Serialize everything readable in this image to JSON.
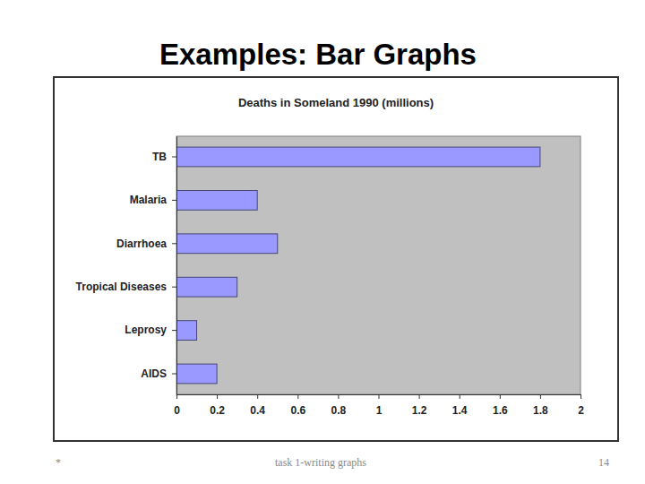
{
  "slide": {
    "title": "Examples: Bar Graphs",
    "footer_left": "*",
    "footer_center": "task 1-writing graphs",
    "page_number": "14"
  },
  "chart_data": {
    "type": "bar",
    "title": "Deaths  in Someland 1990 (millions)",
    "orientation": "horizontal",
    "categories": [
      "TB",
      "Malaria",
      "Diarrhoea",
      "Tropical Diseases",
      "Leprosy",
      "AIDS"
    ],
    "values": [
      1.8,
      0.4,
      0.5,
      0.3,
      0.1,
      0.2
    ],
    "color": "#9999ff",
    "xlim": [
      0,
      2
    ],
    "xticks": [
      0,
      0.2,
      0.4,
      0.6,
      0.8,
      1,
      1.2,
      1.4,
      1.6,
      1.8,
      2
    ],
    "grid": false
  }
}
